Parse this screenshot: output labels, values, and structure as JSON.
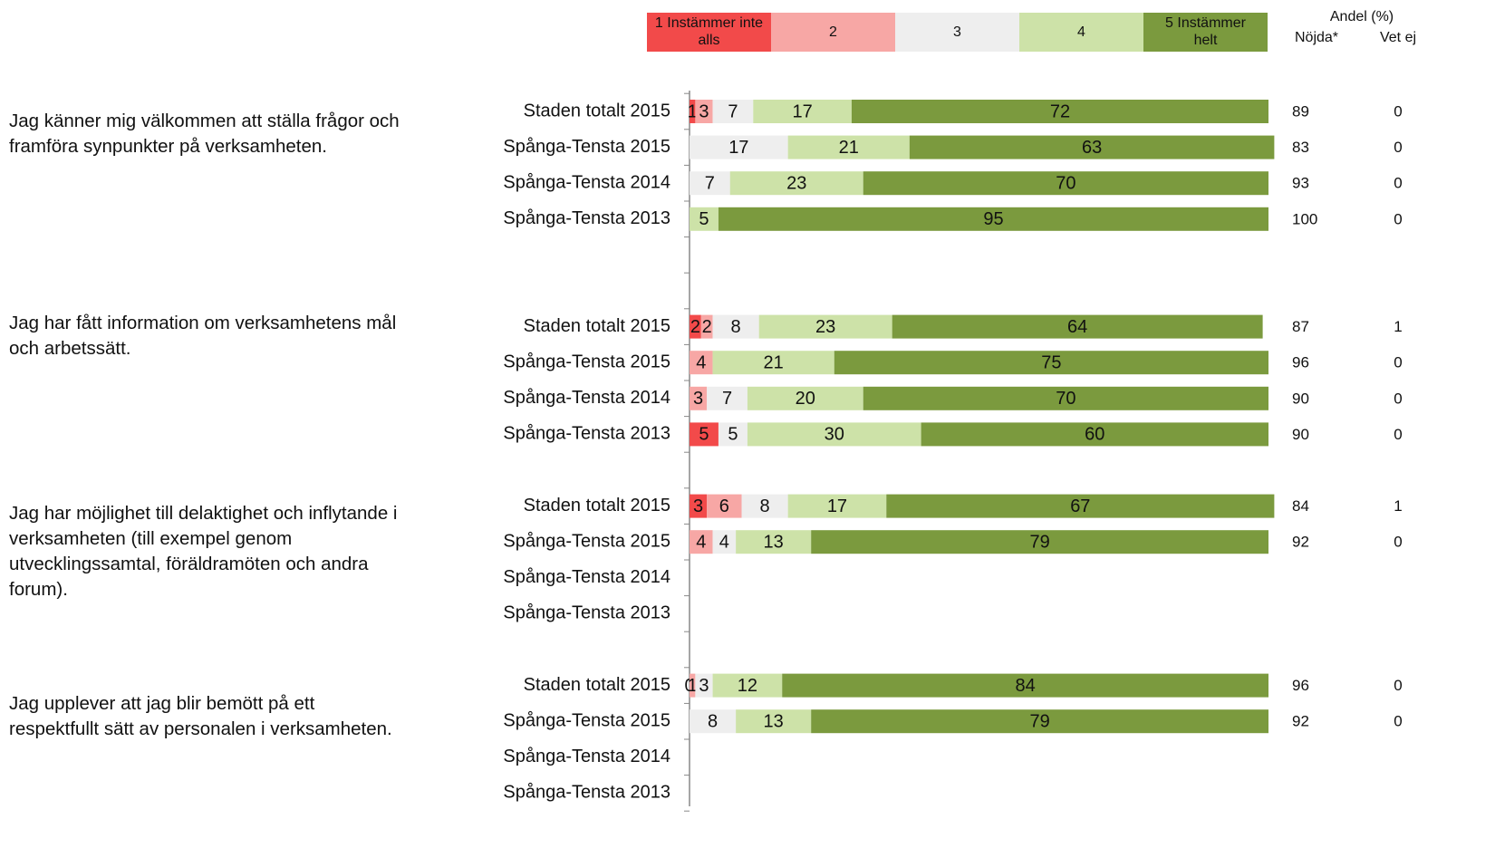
{
  "chart_data": {
    "type": "stacked-bar",
    "legend": {
      "categories": [
        "1 Instämmer inte alls",
        "2",
        "3",
        "4",
        "5 Instämmer helt"
      ],
      "colors": [
        "#f24a4a",
        "#f7a7a5",
        "#eeeeee",
        "#cde2a8",
        "#7b9a3e"
      ]
    },
    "header": {
      "title": "Andel (%)",
      "columns": [
        "Nöjda*",
        "Vet ej"
      ]
    },
    "xlim": [
      0,
      100
    ],
    "groups": [
      {
        "question": "Jag känner mig välkommen att ställa frågor och framföra synpunkter på verksamheten.",
        "rows": [
          {
            "label": "Staden totalt 2015",
            "values": [
              1,
              3,
              7,
              17,
              72
            ],
            "nojda": 89,
            "vetej": 0
          },
          {
            "label": "Spånga-Tensta 2015",
            "values": [
              null,
              null,
              17,
              21,
              63
            ],
            "nojda": 83,
            "vetej": 0
          },
          {
            "label": "Spånga-Tensta 2014",
            "values": [
              null,
              null,
              7,
              23,
              70
            ],
            "nojda": 93,
            "vetej": 0
          },
          {
            "label": "Spånga-Tensta 2013",
            "values": [
              null,
              null,
              null,
              5,
              95
            ],
            "nojda": 100,
            "vetej": 0
          }
        ]
      },
      {
        "question": "Jag har fått information om verksamhetens mål och arbetssätt.",
        "rows": [
          {
            "label": "Staden totalt 2015",
            "values": [
              2,
              2,
              8,
              23,
              64
            ],
            "nojda": 87,
            "vetej": 1
          },
          {
            "label": "Spånga-Tensta 2015",
            "values": [
              null,
              4,
              null,
              21,
              75
            ],
            "nojda": 96,
            "vetej": 0
          },
          {
            "label": "Spånga-Tensta 2014",
            "values": [
              null,
              3,
              7,
              20,
              70
            ],
            "nojda": 90,
            "vetej": 0
          },
          {
            "label": "Spånga-Tensta 2013",
            "values": [
              5,
              null,
              5,
              30,
              60
            ],
            "nojda": 90,
            "vetej": 0
          }
        ]
      },
      {
        "question": "Jag har möjlighet till delaktighet och inflytande i verksamheten (till exempel genom utvecklingssamtal, föräldramöten och andra forum).",
        "rows": [
          {
            "label": "Staden totalt 2015",
            "values": [
              3,
              6,
              8,
              17,
              67
            ],
            "nojda": 84,
            "vetej": 1
          },
          {
            "label": "Spånga-Tensta 2015",
            "values": [
              null,
              4,
              4,
              13,
              79
            ],
            "nojda": 92,
            "vetej": 0
          },
          {
            "label": "Spånga-Tensta 2014"
          },
          {
            "label": "Spånga-Tensta 2013"
          }
        ]
      },
      {
        "question": "Jag upplever att jag blir bemött på ett respektfullt sätt av personalen i verksamheten.",
        "rows": [
          {
            "label": "Staden totalt 2015",
            "values": [
              0,
              1,
              3,
              12,
              84
            ],
            "nojda": 96,
            "vetej": 0
          },
          {
            "label": "Spånga-Tensta 2015",
            "values": [
              null,
              null,
              8,
              13,
              79
            ],
            "nojda": 92,
            "vetej": 0
          },
          {
            "label": "Spånga-Tensta 2014"
          },
          {
            "label": "Spånga-Tensta 2013"
          }
        ]
      }
    ]
  }
}
